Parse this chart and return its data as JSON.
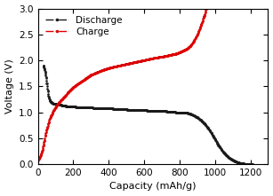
{
  "discharge_capacity": [
    30,
    35,
    40,
    45,
    50,
    55,
    60,
    65,
    70,
    75,
    80,
    85,
    90,
    95,
    100,
    110,
    120,
    130,
    140,
    150,
    160,
    170,
    180,
    190,
    200,
    220,
    240,
    260,
    280,
    300,
    330,
    360,
    390,
    420,
    450,
    480,
    510,
    540,
    570,
    600,
    630,
    660,
    690,
    720,
    750,
    780,
    810,
    840,
    860,
    880,
    900,
    920,
    940,
    960,
    980,
    1000,
    1020,
    1050,
    1080,
    1110,
    1140,
    1160,
    1180,
    1200,
    1210
  ],
  "discharge_voltage": [
    1.9,
    1.85,
    1.78,
    1.68,
    1.55,
    1.42,
    1.3,
    1.24,
    1.21,
    1.19,
    1.18,
    1.17,
    1.17,
    1.16,
    1.16,
    1.15,
    1.14,
    1.14,
    1.13,
    1.13,
    1.12,
    1.12,
    1.12,
    1.11,
    1.11,
    1.1,
    1.1,
    1.1,
    1.09,
    1.09,
    1.08,
    1.08,
    1.07,
    1.07,
    1.06,
    1.06,
    1.05,
    1.05,
    1.04,
    1.04,
    1.03,
    1.03,
    1.02,
    1.02,
    1.01,
    1.0,
    1.0,
    0.99,
    0.97,
    0.94,
    0.9,
    0.85,
    0.78,
    0.7,
    0.6,
    0.48,
    0.36,
    0.22,
    0.12,
    0.06,
    0.02,
    0.01,
    0.0,
    0.0,
    0.0
  ],
  "charge_capacity": [
    0,
    5,
    10,
    15,
    20,
    25,
    30,
    35,
    40,
    50,
    60,
    70,
    80,
    90,
    100,
    115,
    130,
    150,
    170,
    190,
    210,
    240,
    270,
    300,
    340,
    380,
    420,
    460,
    500,
    540,
    580,
    620,
    660,
    700,
    740,
    780,
    810,
    840,
    860,
    880,
    900,
    920,
    940,
    950
  ],
  "charge_voltage": [
    0.08,
    0.1,
    0.13,
    0.17,
    0.22,
    0.28,
    0.36,
    0.44,
    0.54,
    0.68,
    0.8,
    0.9,
    0.98,
    1.05,
    1.1,
    1.17,
    1.23,
    1.3,
    1.38,
    1.45,
    1.51,
    1.58,
    1.65,
    1.72,
    1.78,
    1.83,
    1.87,
    1.9,
    1.93,
    1.96,
    1.99,
    2.02,
    2.05,
    2.07,
    2.1,
    2.13,
    2.17,
    2.22,
    2.28,
    2.37,
    2.5,
    2.68,
    2.86,
    3.0
  ],
  "discharge_color": "#1a1a1a",
  "charge_color": "#dd0000",
  "xlim": [
    0,
    1300
  ],
  "ylim": [
    0,
    3.0
  ],
  "xlabel": "Capacity (mAh/g)",
  "ylabel": "Voltage (V)",
  "xticks": [
    0,
    200,
    400,
    600,
    800,
    1000,
    1200
  ],
  "yticks": [
    0.0,
    0.5,
    1.0,
    1.5,
    2.0,
    2.5,
    3.0
  ],
  "legend_discharge": "Discharge",
  "legend_charge": "Charge",
  "marker_size": 1.8,
  "line_width": 0.6
}
